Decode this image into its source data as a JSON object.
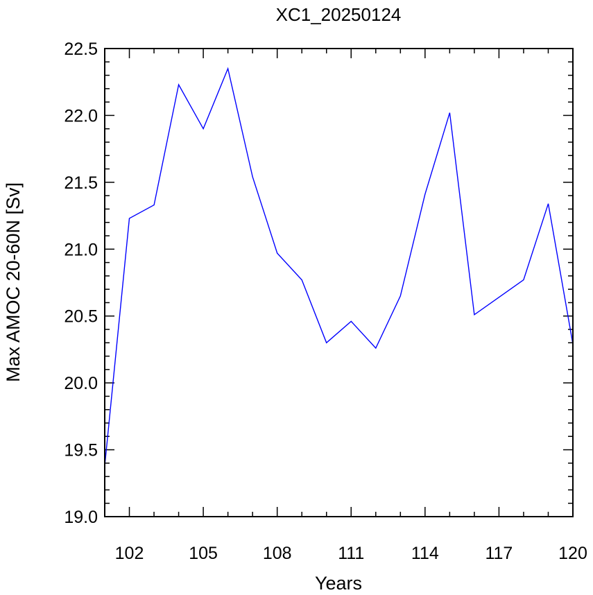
{
  "chart_data": {
    "type": "line",
    "title": "XC1_20250124",
    "xlabel": "Years",
    "ylabel": "Max AMOC 20-60N [Sv]",
    "xlim": [
      101,
      120
    ],
    "ylim": [
      19.0,
      22.5
    ],
    "x_ticks": [
      102,
      105,
      108,
      111,
      114,
      117,
      120
    ],
    "x_tick_labels": [
      "102",
      "105",
      "108",
      "111",
      "114",
      "117",
      "120"
    ],
    "y_ticks": [
      19.0,
      19.5,
      20.0,
      20.5,
      21.0,
      21.5,
      22.0,
      22.5
    ],
    "y_tick_labels": [
      "19.0",
      "19.5",
      "20.0",
      "20.5",
      "21.0",
      "21.5",
      "22.0",
      "22.5"
    ],
    "grid": false,
    "series": [
      {
        "color": "#0000ff",
        "x": [
          101,
          102,
          103,
          104,
          105,
          106,
          107,
          108,
          109,
          110,
          111,
          112,
          113,
          114,
          115,
          116,
          117,
          118,
          119,
          120
        ],
        "values": [
          19.38,
          21.23,
          21.33,
          22.23,
          21.9,
          22.35,
          21.54,
          20.97,
          20.77,
          20.3,
          20.46,
          20.26,
          20.65,
          21.41,
          22.02,
          20.51,
          20.64,
          20.77,
          21.34,
          20.29
        ]
      }
    ]
  }
}
